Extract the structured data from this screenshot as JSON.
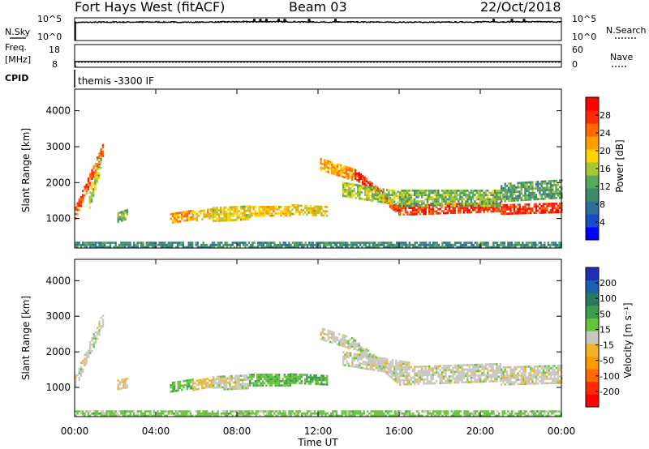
{
  "header": {
    "station": "Fort Hays West (fitACF)",
    "beam": "Beam 03",
    "date": "22/Oct/2018"
  },
  "top_panels": {
    "nsky_label": "N.Sky",
    "nsearch_label": "N.Search",
    "freq_label_1": "Freq.",
    "freq_label_2": "[MHz]",
    "nave_label": "Nave",
    "cpid_label": "CPID",
    "cpid_text": "themis -3300 IF",
    "noise_ticks_left": [
      "10^5",
      "10^0"
    ],
    "noise_ticks_right": [
      "10^5",
      "10^0"
    ],
    "freq_ticks_left": [
      "18",
      "8"
    ],
    "nave_ticks_right": [
      "60",
      "0"
    ]
  },
  "x_axis": {
    "label": "Time UT",
    "ticks": [
      "00:00",
      "04:00",
      "08:00",
      "12:00",
      "16:00",
      "20:00",
      "00:00"
    ]
  },
  "colors": {
    "power_scale": [
      "#0000ff",
      "#1a4bc8",
      "#2e6e9a",
      "#3f8a6a",
      "#59a75a",
      "#a8c832",
      "#ffd400",
      "#ffa000",
      "#ff6a00",
      "#ff2a00",
      "#ff0000"
    ],
    "velocity_scale": [
      "#1f2fb5",
      "#1f5fb0",
      "#267a62",
      "#3a9e4a",
      "#67c43a",
      "#c8c8c0",
      "#f0b428",
      "#ff9a00",
      "#ff6a00",
      "#ff2a00",
      "#ff0000"
    ]
  },
  "chart_data": [
    {
      "type": "line",
      "name": "noise-panel",
      "title": "",
      "series": [
        {
          "name": "N.Sky",
          "x": [
            0,
            2,
            4,
            6,
            8,
            10,
            12,
            14,
            16,
            18,
            20,
            22,
            24
          ],
          "values": [
            10000,
            12000,
            12000,
            11000,
            14000,
            15000,
            12000,
            12000,
            11000,
            11000,
            13000,
            14000,
            13000
          ]
        },
        {
          "name": "N.Search",
          "x": [
            0,
            2,
            4,
            6,
            8,
            10,
            12,
            14,
            16,
            18,
            20,
            22,
            24
          ],
          "values": [
            9000,
            9500,
            9800,
            10000,
            11000,
            11500,
            10500,
            10000,
            10000,
            10200,
            11000,
            11500,
            11000
          ]
        }
      ],
      "ylim": [
        1,
        100000
      ],
      "yscale": "log",
      "xlim": [
        0,
        24
      ]
    },
    {
      "type": "line",
      "name": "frequency-panel",
      "title": "",
      "series": [
        {
          "name": "Freq.",
          "x": [
            0,
            4,
            8,
            12,
            16,
            20,
            24
          ],
          "values": [
            10.5,
            10.5,
            10.5,
            10.5,
            10.5,
            10.5,
            10.5
          ]
        },
        {
          "name": "Nave",
          "x": [
            0,
            4,
            8,
            12,
            16,
            20,
            24
          ],
          "values": [
            13,
            13,
            13,
            13,
            13,
            13,
            13
          ]
        }
      ],
      "ylim_left": [
        8,
        18
      ],
      "ylim_right": [
        0,
        60
      ],
      "xlim": [
        0,
        24
      ]
    },
    {
      "type": "heatmap",
      "name": "power-panel",
      "ylabel": "Slant Range [km]",
      "xlabel": "Time UT",
      "xlim": [
        0,
        24
      ],
      "ylim": [
        180,
        4600
      ],
      "yticks": [
        "1000",
        "2000",
        "3000",
        "4000"
      ],
      "colorbar_label": "Power [dB]",
      "colorbar_ticks": [
        "4",
        "8",
        "12",
        "16",
        "20",
        "24",
        "28"
      ],
      "colorbar_range": [
        0,
        32
      ],
      "regions": [
        {
          "t": [
            0.0,
            1.4
          ],
          "r_start": 1150,
          "r_end": 2950,
          "thick": 350,
          "value": 26
        },
        {
          "t": [
            0.7,
            1.3
          ],
          "r_start": 1500,
          "r_end": 2600,
          "thick": 450,
          "value": 16
        },
        {
          "t": [
            2.1,
            2.6
          ],
          "r_start": 1000,
          "r_end": 1100,
          "thick": 250,
          "value": 14
        },
        {
          "t": [
            4.7,
            5.8
          ],
          "r_start": 1000,
          "r_end": 1100,
          "thick": 300,
          "value": 22
        },
        {
          "t": [
            5.8,
            6.8
          ],
          "r_start": 1050,
          "r_end": 1150,
          "thick": 300,
          "value": 20
        },
        {
          "t": [
            6.8,
            8.6
          ],
          "r_start": 1100,
          "r_end": 1150,
          "thick": 400,
          "value": 18
        },
        {
          "t": [
            8.6,
            10.6
          ],
          "r_start": 1200,
          "r_end": 1200,
          "thick": 300,
          "value": 20
        },
        {
          "t": [
            10.6,
            12.4
          ],
          "r_start": 1250,
          "r_end": 1200,
          "thick": 300,
          "value": 18
        },
        {
          "t": [
            12.1,
            13.8
          ],
          "r_start": 2500,
          "r_end": 2200,
          "thick": 350,
          "value": 22
        },
        {
          "t": [
            13.8,
            16.0
          ],
          "r_start": 2200,
          "r_end": 1200,
          "thick": 250,
          "value": 28
        },
        {
          "t": [
            13.2,
            16.5
          ],
          "r_start": 1800,
          "r_end": 1500,
          "thick": 400,
          "value": 16
        },
        {
          "t": [
            16.0,
            21.0
          ],
          "r_start": 1200,
          "r_end": 1300,
          "thick": 250,
          "value": 28
        },
        {
          "t": [
            16.0,
            21.0
          ],
          "r_start": 1550,
          "r_end": 1550,
          "thick": 450,
          "value": 14
        },
        {
          "t": [
            21.0,
            24.0
          ],
          "r_start": 1250,
          "r_end": 1300,
          "thick": 300,
          "value": 28
        },
        {
          "t": [
            21.0,
            24.0
          ],
          "r_start": 1700,
          "r_end": 1800,
          "thick": 500,
          "value": 12
        },
        {
          "t": [
            0.0,
            24.0
          ],
          "r_start": 250,
          "r_end": 250,
          "thick": 150,
          "value": 10
        }
      ]
    },
    {
      "type": "heatmap",
      "name": "velocity-panel",
      "ylabel": "Slant Range [km]",
      "xlabel": "Time UT",
      "xlim": [
        0,
        24
      ],
      "ylim": [
        180,
        4600
      ],
      "yticks": [
        "1000",
        "2000",
        "3000",
        "4000"
      ],
      "colorbar_label": "Velocity [m s⁻¹]",
      "colorbar_ticks": [
        "200",
        "100",
        "50",
        "15",
        "-15",
        "-50",
        "-100",
        "-200"
      ],
      "colorbar_range": [
        -250,
        250
      ],
      "regions": [
        {
          "t": [
            0.0,
            1.4
          ],
          "r_start": 1150,
          "r_end": 2950,
          "thick": 400,
          "value": 0
        },
        {
          "t": [
            2.1,
            2.6
          ],
          "r_start": 1050,
          "r_end": 1100,
          "thick": 250,
          "value": 30
        },
        {
          "t": [
            4.7,
            5.8
          ],
          "r_start": 1000,
          "r_end": 1100,
          "thick": 300,
          "value": -60
        },
        {
          "t": [
            5.8,
            6.8
          ],
          "r_start": 1050,
          "r_end": 1150,
          "thick": 300,
          "value": 40
        },
        {
          "t": [
            6.8,
            8.6
          ],
          "r_start": 1100,
          "r_end": 1150,
          "thick": 400,
          "value": 0
        },
        {
          "t": [
            8.6,
            10.6
          ],
          "r_start": 1200,
          "r_end": 1200,
          "thick": 350,
          "value": -60
        },
        {
          "t": [
            10.6,
            12.4
          ],
          "r_start": 1250,
          "r_end": 1200,
          "thick": 300,
          "value": -70
        },
        {
          "t": [
            12.1,
            13.8
          ],
          "r_start": 2500,
          "r_end": 2200,
          "thick": 350,
          "value": 0
        },
        {
          "t": [
            13.8,
            16.0
          ],
          "r_start": 2200,
          "r_end": 1200,
          "thick": 300,
          "value": 0
        },
        {
          "t": [
            13.2,
            16.5
          ],
          "r_start": 1800,
          "r_end": 1500,
          "thick": 400,
          "value": 0
        },
        {
          "t": [
            16.0,
            21.0
          ],
          "r_start": 1300,
          "r_end": 1400,
          "thick": 500,
          "value": 0
        },
        {
          "t": [
            21.0,
            24.0
          ],
          "r_start": 1300,
          "r_end": 1350,
          "thick": 500,
          "value": 0
        },
        {
          "t": [
            0.0,
            24.0
          ],
          "r_start": 250,
          "r_end": 250,
          "thick": 150,
          "value": -40
        }
      ]
    }
  ]
}
